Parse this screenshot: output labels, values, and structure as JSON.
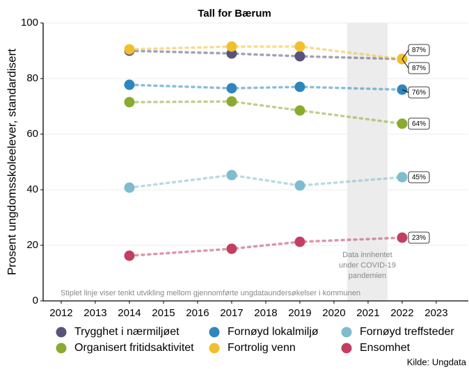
{
  "chart_data": {
    "type": "line",
    "title": "Tall for Bærum",
    "y_label": "Prosent ungdomsskoleelever, standardisert",
    "x": [
      2014,
      2017,
      2019,
      2022
    ],
    "series": [
      {
        "name": "Trygghet i nærmiljøet",
        "color": "#58537a",
        "values": [
          90,
          89,
          88,
          87
        ],
        "value_labels": [
          null,
          null,
          null,
          "87%"
        ]
      },
      {
        "name": "Organisert fritidsaktivitet",
        "color": "#89ab2f",
        "values": [
          71.5,
          71.75,
          68.5,
          63.75
        ],
        "value_labels": [
          null,
          null,
          null,
          "64%"
        ]
      },
      {
        "name": "Fornøyd lokalmiljø",
        "color": "#2f86bd",
        "values": [
          77.75,
          76.5,
          77,
          76
        ],
        "value_labels": [
          null,
          null,
          null,
          "76%"
        ]
      },
      {
        "name": "Fortrolig venn",
        "color": "#f1bf2e",
        "values": [
          90.5,
          91.5,
          91.5,
          87
        ],
        "value_labels": [
          null,
          null,
          null,
          "87%"
        ]
      },
      {
        "name": "Fornøyd treffsteder",
        "color": "#7fbccd",
        "values": [
          40.75,
          45.25,
          41.5,
          44.5
        ],
        "value_labels": [
          null,
          null,
          null,
          "45%"
        ]
      },
      {
        "name": "Ensomhet",
        "color": "#c23f61",
        "values": [
          16.25,
          18.75,
          21.25,
          22.75
        ],
        "value_labels": [
          null,
          null,
          null,
          "23%"
        ]
      }
    ],
    "xlim": [
      2011.47,
      2023.94
    ],
    "xticks": [
      2012,
      2013,
      2014,
      2015,
      2016,
      2017,
      2018,
      2019,
      2020,
      2021,
      2022,
      2023
    ],
    "ylim": [
      0,
      100
    ],
    "yticks": [
      0,
      20,
      40,
      60,
      80,
      100
    ],
    "grid": true,
    "shade_x": [
      2020.39,
      2021.57
    ],
    "shade_note": [
      "Data innhentet",
      "under COVID-19",
      "pandemien"
    ],
    "footnote": "Stiplet linje viser tenkt utvikling mellom gjennomførte ungdataundersøkelser i kommunen",
    "source": "Kilde: Ungdata"
  }
}
